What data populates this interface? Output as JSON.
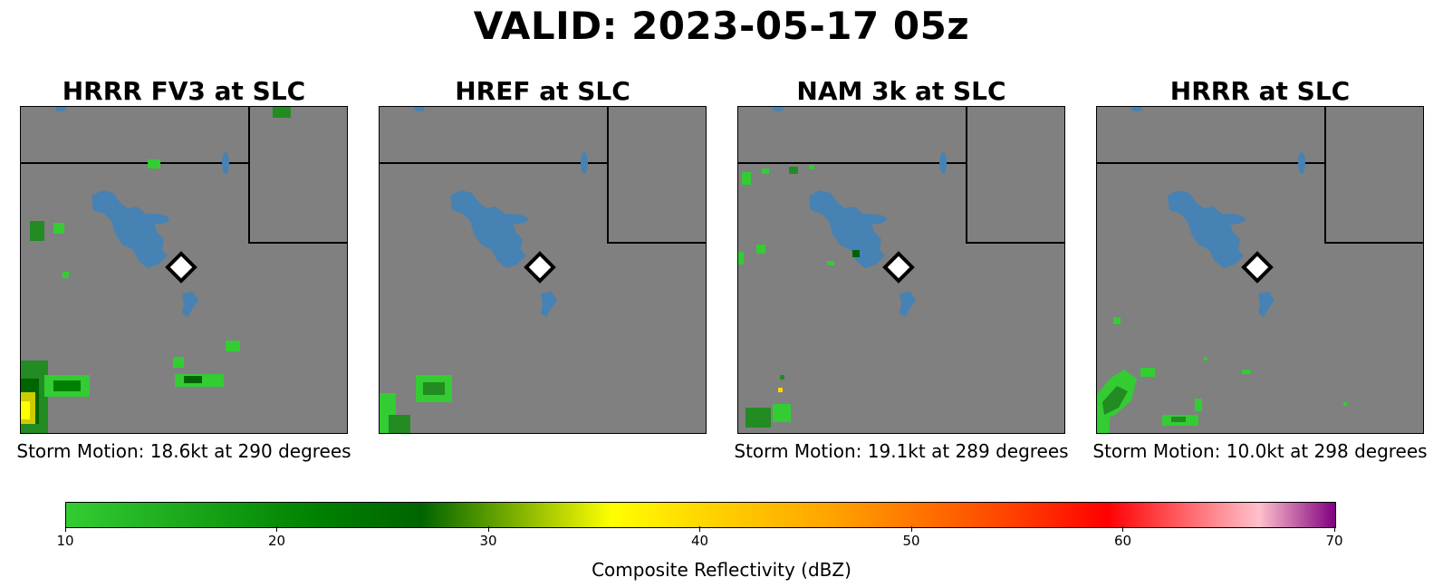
{
  "title": "VALID: 2023-05-17 05z",
  "panels": [
    {
      "title": "HRRR FV3 at SLC",
      "storm_motion": "Storm Motion: 18.6kt at 290 degrees"
    },
    {
      "title": "HREF at SLC",
      "storm_motion": ""
    },
    {
      "title": "NAM 3k at SLC",
      "storm_motion": "Storm Motion: 19.1kt at 289 degrees"
    },
    {
      "title": "HRRR at SLC",
      "storm_motion": "Storm Motion: 10.0kt at 298 degrees"
    }
  ],
  "colorbar": {
    "label": "Composite Reflectivity (dBZ)",
    "ticks": [
      "10",
      "20",
      "30",
      "40",
      "50",
      "60",
      "70"
    ],
    "range": [
      10,
      70
    ]
  },
  "colors": {
    "background": "#808080",
    "water": "#4682b4",
    "reflectivity_low": "#33cc33",
    "reflectivity_mid": "#008000",
    "reflectivity_high": "#ffff00",
    "station_marker": "#ffffff"
  },
  "icons": {
    "station_marker": "diamond-marker-icon"
  }
}
